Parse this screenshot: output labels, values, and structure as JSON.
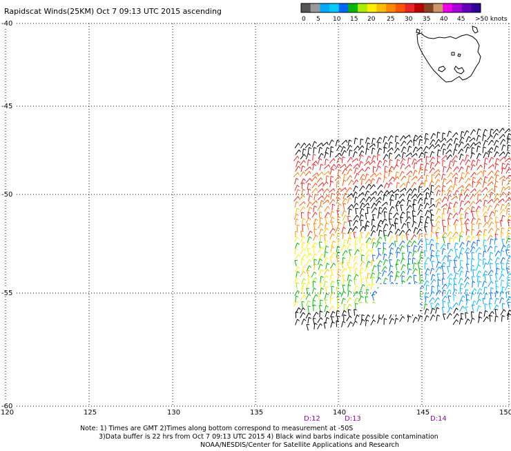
{
  "title": "Rapidscat Winds(25KM) Oct  7 09:13 UTC 2015 ascending",
  "colorbar": {
    "colors": [
      "#555555",
      "#999999",
      "#00aaff",
      "#00ccff",
      "#0066ff",
      "#00bb00",
      "#aaee00",
      "#ffee00",
      "#ffbb00",
      "#ff8800",
      "#ff5500",
      "#ee2222",
      "#bb0000",
      "#884422",
      "#cc9966",
      "#ee00ee",
      "#aa00dd",
      "#6600bb",
      "#330099"
    ],
    "labels": [
      "0",
      "5",
      "10",
      "15",
      "20",
      "25",
      "30",
      "35",
      "40",
      "45"
    ],
    "end_label": ">50 knots"
  },
  "axes": {
    "lat_labels": [
      "-40",
      "-45",
      "-50",
      "-55",
      "-60"
    ],
    "lon_labels": [
      "120",
      "125",
      "130",
      "135",
      "140",
      "145",
      "150"
    ]
  },
  "times": [
    "D:12",
    "D:13",
    "D:14"
  ],
  "notes": [
    "Note: 1) Times are GMT 2)Times along bottom correspond to measurement at -50S",
    "3)Data buffer is 22 hrs from Oct  7 09:13 UTC 2015 4) Black wind barbs indicate possible contamination",
    "NOAA/NESDIS/Center for Satellite Applications and Research"
  ]
}
